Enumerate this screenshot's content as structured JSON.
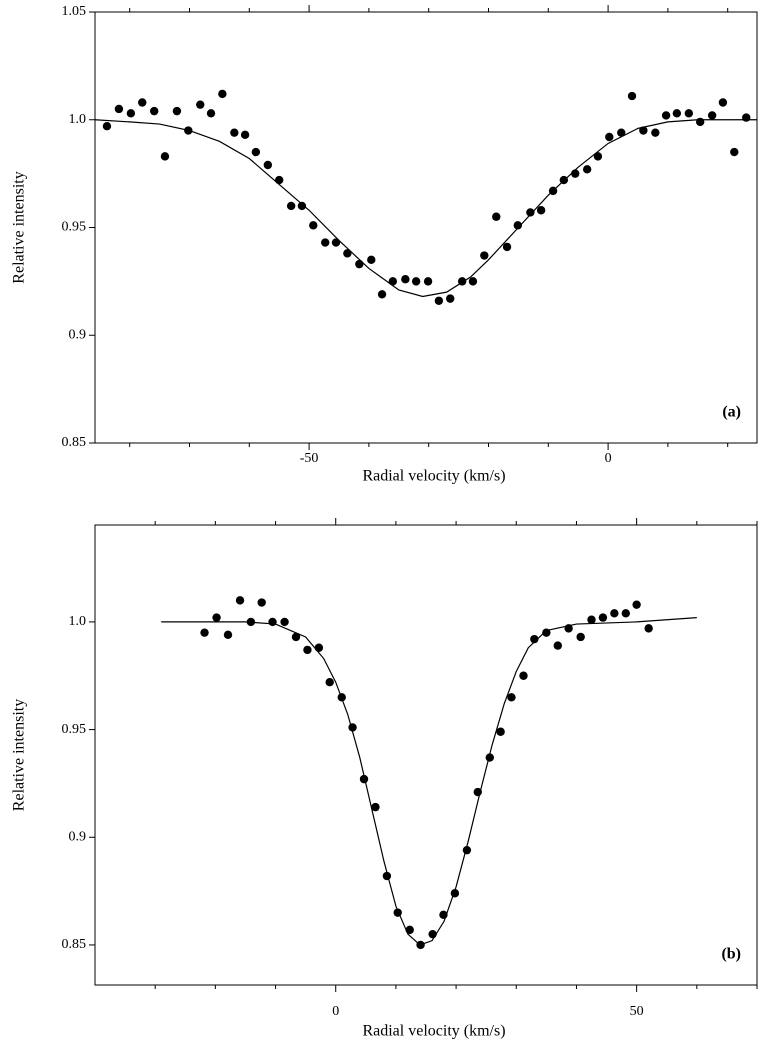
{
  "chart_data": [
    {
      "type": "scatter",
      "annotation": "(a)",
      "xlabel": "Radial velocity (km/s)",
      "ylabel": "Relative intensity",
      "color": "#000000",
      "xlim": [
        -85.8,
        24.9
      ],
      "xticks": [
        -50,
        0
      ],
      "xminorticks": [
        -80,
        -70,
        -60,
        -40,
        -30,
        -20,
        -10,
        10,
        20
      ],
      "ylim": [
        0.85,
        1.05
      ],
      "yticks": [
        0.85,
        0.9,
        0.95,
        {
          "value": 1.0,
          "label": "1.0"
        },
        1.05
      ],
      "points": {
        "x": [
          -83.8,
          -81.8,
          -79.8,
          -77.9,
          -75.9,
          -74.1,
          -72.1,
          -70.2,
          -68.2,
          -66.4,
          -64.5,
          -62.5,
          -60.7,
          -58.9,
          -56.9,
          -55.0,
          -53.0,
          -51.2,
          -49.3,
          -47.3,
          -45.5,
          -43.6,
          -41.6,
          -39.6,
          -37.8,
          -36.0,
          -33.9,
          -32.1,
          -30.1,
          -28.3,
          -26.4,
          -24.4,
          -22.6,
          -20.7,
          -18.7,
          -16.9,
          -15.1,
          -13.0,
          -11.2,
          -9.2,
          -7.4,
          -5.5,
          -3.5,
          -1.7,
          0.2,
          2.2,
          4.0,
          5.9,
          7.9,
          9.7,
          11.5,
          13.5,
          15.4,
          17.4,
          19.2,
          21.1,
          23.1
        ],
        "values": [
          0.997,
          1.005,
          1.003,
          1.008,
          1.004,
          0.983,
          1.004,
          0.995,
          1.007,
          1.003,
          1.012,
          0.994,
          0.993,
          0.985,
          0.979,
          0.972,
          0.96,
          0.96,
          0.951,
          0.943,
          0.943,
          0.938,
          0.933,
          0.935,
          0.919,
          0.925,
          0.926,
          0.925,
          0.925,
          0.916,
          0.917,
          0.925,
          0.925,
          0.937,
          0.955,
          0.941,
          0.951,
          0.957,
          0.958,
          0.967,
          0.972,
          0.975,
          0.977,
          0.983,
          0.992,
          0.994,
          1.011,
          0.995,
          0.994,
          1.002,
          1.003,
          1.003,
          0.999,
          1.002,
          1.008,
          0.985,
          1.001
        ]
      },
      "fit": {
        "x": [
          -85.8,
          -80,
          -75,
          -70,
          -65,
          -60,
          -55,
          -50,
          -45,
          -40,
          -35,
          -31,
          -27,
          -23,
          -20,
          -15,
          -10,
          -5,
          0,
          5,
          10,
          15,
          24.9
        ],
        "values": [
          1.0,
          0.999,
          0.998,
          0.995,
          0.99,
          0.982,
          0.97,
          0.958,
          0.944,
          0.931,
          0.921,
          0.918,
          0.92,
          0.927,
          0.935,
          0.95,
          0.965,
          0.978,
          0.989,
          0.996,
          0.999,
          1.0,
          1.0
        ]
      }
    },
    {
      "type": "scatter",
      "annotation": "(b)",
      "xlabel": "Radial velocity (km/s)",
      "ylabel": "Relative intensity",
      "color": "#000000",
      "xlim": [
        -40,
        70
      ],
      "xticks": [
        0,
        50
      ],
      "xminorticks": [
        -30,
        -20,
        -10,
        10,
        20,
        30,
        40,
        60,
        70
      ],
      "ylim": [
        0.8314,
        1.045
      ],
      "yticks": [
        0.85,
        0.9,
        0.95,
        {
          "value": 1.0,
          "label": "1.0"
        }
      ],
      "points": {
        "x": [
          -21.8,
          -19.8,
          -17.9,
          -15.9,
          -14.1,
          -12.3,
          -10.5,
          -8.5,
          -6.6,
          -4.7,
          -2.8,
          -1.0,
          1.0,
          2.8,
          4.7,
          6.6,
          8.5,
          10.3,
          12.3,
          14.1,
          16.1,
          17.9,
          19.8,
          21.8,
          23.6,
          25.6,
          27.4,
          29.2,
          31.2,
          33.0,
          35.0,
          36.9,
          38.7,
          40.7,
          42.5,
          44.4,
          46.3,
          48.2,
          50.0,
          52.0
        ],
        "values": [
          0.995,
          1.002,
          0.994,
          1.01,
          1.0,
          1.009,
          1.0,
          1.0,
          0.993,
          0.987,
          0.988,
          0.972,
          0.965,
          0.951,
          0.927,
          0.914,
          0.882,
          0.865,
          0.857,
          0.85,
          0.855,
          0.864,
          0.874,
          0.894,
          0.921,
          0.937,
          0.949,
          0.965,
          0.975,
          0.992,
          0.995,
          0.989,
          0.997,
          0.993,
          1.001,
          1.002,
          1.004,
          1.004,
          1.008,
          0.997
        ]
      },
      "fit": {
        "x": [
          -29,
          -15,
          -10,
          -5,
          -2,
          0,
          2,
          4,
          6,
          8,
          10,
          12,
          14,
          16,
          18,
          20,
          22,
          24,
          26,
          28,
          30,
          32,
          35,
          40,
          50,
          60
        ],
        "values": [
          1.0,
          1.0,
          0.999,
          0.993,
          0.983,
          0.972,
          0.957,
          0.937,
          0.913,
          0.889,
          0.868,
          0.855,
          0.85,
          0.852,
          0.861,
          0.877,
          0.898,
          0.921,
          0.943,
          0.962,
          0.977,
          0.988,
          0.996,
          0.999,
          1.0,
          1.002
        ]
      }
    }
  ]
}
